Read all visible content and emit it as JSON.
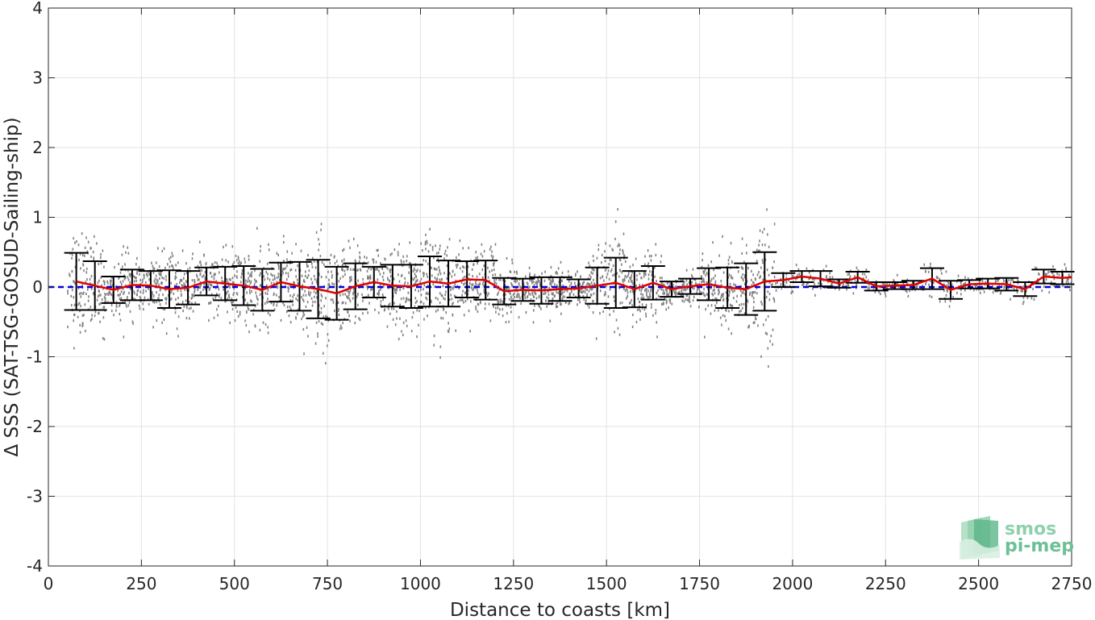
{
  "chart_data": {
    "type": "scatter",
    "xlabel": "Distance to coasts [km]",
    "ylabel": "Δ SSS (SAT-TSG-GOSUD-Sailing-ship)",
    "xlim": [
      0,
      2750
    ],
    "ylim": [
      -4,
      4
    ],
    "xticks": [
      0,
      250,
      500,
      750,
      1000,
      1250,
      1500,
      1750,
      2000,
      2250,
      2500,
      2750
    ],
    "yticks": [
      -4,
      -3,
      -2,
      -1,
      0,
      1,
      2,
      3,
      4
    ],
    "grid": true,
    "reference_line": {
      "y": 0,
      "color": "#0000e0",
      "style": "dashed"
    },
    "scatter_color": "#808080",
    "mean_line_color": "#e00000",
    "errorbar_color": "#000000",
    "binned_stats": {
      "x": [
        75,
        125,
        175,
        225,
        275,
        325,
        375,
        425,
        475,
        525,
        575,
        625,
        675,
        725,
        775,
        825,
        875,
        925,
        975,
        1025,
        1075,
        1125,
        1175,
        1225,
        1275,
        1325,
        1375,
        1425,
        1475,
        1525,
        1575,
        1625,
        1675,
        1725,
        1775,
        1825,
        1875,
        1925,
        1975,
        2025,
        2075,
        2125,
        2175,
        2225,
        2275,
        2325,
        2375,
        2425,
        2475,
        2525,
        2575,
        2625,
        2675,
        2725,
        2750
      ],
      "mean": [
        0.08,
        0.02,
        -0.04,
        0.03,
        0.02,
        -0.03,
        -0.01,
        0.08,
        0.05,
        0.02,
        -0.04,
        0.07,
        0.01,
        -0.03,
        -0.09,
        0.01,
        0.07,
        0.02,
        0.01,
        0.08,
        0.05,
        0.11,
        0.1,
        -0.06,
        -0.04,
        -0.05,
        -0.03,
        -0.02,
        0.02,
        0.06,
        -0.03,
        0.06,
        -0.03,
        0.01,
        0.04,
        -0.01,
        -0.03,
        0.08,
        0.1,
        0.15,
        0.12,
        0.05,
        0.14,
        0.01,
        0.02,
        0.03,
        0.12,
        -0.04,
        0.04,
        0.05,
        0.04,
        -0.03,
        0.15,
        0.13,
        0.14
      ],
      "std": [
        0.41,
        0.35,
        0.19,
        0.22,
        0.21,
        0.27,
        0.24,
        0.2,
        0.24,
        0.28,
        0.3,
        0.28,
        0.35,
        0.42,
        0.38,
        0.33,
        0.22,
        0.3,
        0.31,
        0.36,
        0.33,
        0.26,
        0.28,
        0.19,
        0.16,
        0.19,
        0.17,
        0.13,
        0.26,
        0.36,
        0.26,
        0.24,
        0.11,
        0.11,
        0.23,
        0.29,
        0.37,
        0.42,
        0.1,
        0.08,
        0.11,
        0.06,
        0.08,
        0.06,
        0.05,
        0.06,
        0.15,
        0.13,
        0.06,
        0.07,
        0.09,
        0.1,
        0.1,
        0.09,
        0.09
      ]
    }
  },
  "logo": {
    "line1": "smos",
    "line2": "pi-mep"
  }
}
